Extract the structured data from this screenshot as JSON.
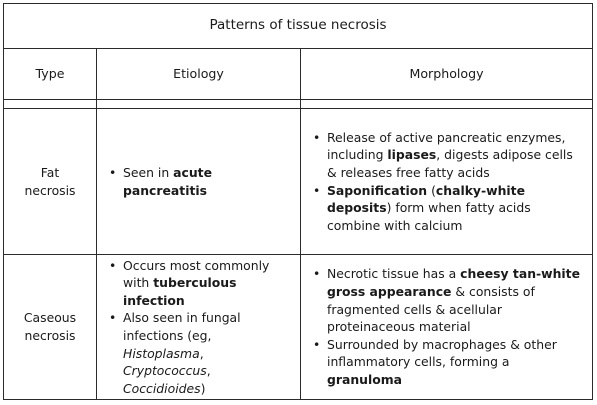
{
  "title": "Patterns of tissue necrosis",
  "headers": {
    "type": "Type",
    "etiology": "Etiology",
    "morphology": "Morphology"
  },
  "rows": [
    {
      "type_line1": "Fat",
      "type_line2": "necrosis",
      "etiology": [
        {
          "t1": "Seen in ",
          "b1": "acute pancreatitis"
        }
      ],
      "morphology": [
        {
          "t1": "Release of active pancreatic enzymes, including ",
          "b1": "lipases",
          "t2": ", digests adipose cells & releases free fatty acids"
        },
        {
          "b1": "Saponification",
          "t1": " (",
          "b2": "chalky-white deposits",
          "t2": ") form when fatty acids combine with calcium"
        }
      ]
    },
    {
      "type_line1": "Caseous",
      "type_line2": "necrosis",
      "etiology": [
        {
          "t1": "Occurs most commonly with ",
          "b1": "tuberculous infection"
        },
        {
          "t1": "Also seen in fungal infections (eg, ",
          "i1": "Histoplasma",
          "t2": ", ",
          "i2": "Cryptococcus",
          "t3": ", ",
          "i3": "Coccidioides",
          "t4": ")"
        }
      ],
      "morphology": [
        {
          "t1": "Necrotic tissue has a ",
          "b1": "cheesy tan-white gross appearance",
          "t2": " & consists of fragmented cells & acellular proteinaceous material"
        },
        {
          "t1": "Surrounded by macrophages & other inflammatory cells, forming a ",
          "b1": "granuloma"
        }
      ]
    }
  ],
  "bullet_glyph": "•"
}
